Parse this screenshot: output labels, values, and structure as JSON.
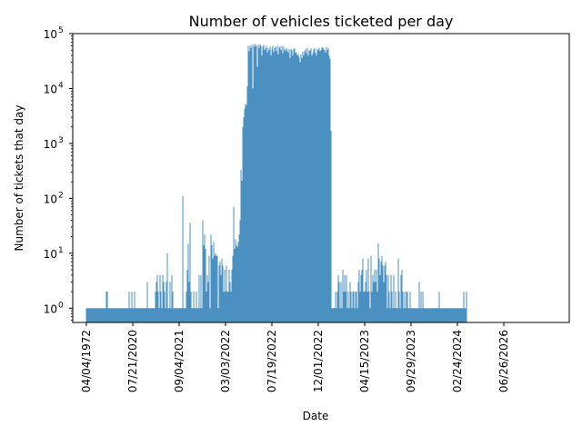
{
  "chart_data": {
    "type": "bar",
    "title": "Number of vehicles ticketed per day",
    "xlabel": "Date",
    "ylabel": "Number of tickets that day",
    "yscale": "log",
    "ylim": [
      0.55,
      100000
    ],
    "y_ticks": [
      {
        "value": 1,
        "base": "10",
        "exp": "0"
      },
      {
        "value": 10,
        "base": "10",
        "exp": "1"
      },
      {
        "value": 100,
        "base": "10",
        "exp": "2"
      },
      {
        "value": 1000,
        "base": "10",
        "exp": "3"
      },
      {
        "value": 10000,
        "base": "10",
        "exp": "4"
      },
      {
        "value": 100000,
        "base": "10",
        "exp": "5"
      }
    ],
    "x_ticks": [
      "04/04/1972",
      "07/21/2020",
      "09/04/2021",
      "03/03/2022",
      "07/19/2022",
      "12/01/2022",
      "04/15/2023",
      "09/29/2023",
      "02/24/2024",
      "06/26/2026"
    ],
    "x_tick_positions": [
      0,
      51,
      102,
      153,
      204,
      255,
      306,
      357,
      408,
      459
    ],
    "bar_color": "#1f77b4",
    "grid": false,
    "legend": "none",
    "segments": [
      {
        "start": 0,
        "values": [
          1,
          1,
          1,
          1,
          1,
          1,
          1,
          1,
          1,
          1,
          1,
          1,
          1,
          1,
          1,
          1,
          1,
          1,
          1,
          1,
          1,
          1,
          2,
          2,
          1,
          1,
          1,
          1,
          1,
          1
        ]
      },
      {
        "start": 30,
        "values": [
          1,
          1,
          1,
          1,
          1,
          1,
          1,
          1,
          1,
          1,
          1,
          1,
          1,
          1,
          1,
          1,
          1,
          2,
          1,
          1,
          2,
          1,
          1,
          2,
          1,
          1,
          1,
          1,
          1,
          1
        ]
      },
      {
        "start": 60,
        "values": [
          1,
          1,
          1,
          1,
          1,
          1,
          1,
          3,
          1,
          1,
          1,
          1,
          1,
          1,
          1,
          1,
          2,
          3,
          4,
          2,
          1,
          4,
          2,
          1,
          4,
          3,
          2,
          1,
          3,
          10
        ]
      },
      {
        "start": 90,
        "values": [
          1,
          1,
          3,
          1,
          4,
          2,
          1,
          1,
          1,
          1,
          1,
          1,
          1,
          1,
          1,
          1,
          110,
          1,
          1,
          1,
          2,
          5,
          15,
          3,
          36,
          2,
          1,
          1,
          2,
          1
        ]
      },
      {
        "start": 120,
        "values": [
          1,
          2,
          1,
          1,
          4,
          1,
          4,
          1,
          40,
          14,
          22,
          12,
          2,
          4,
          3,
          9,
          1,
          22,
          14,
          8,
          16,
          9,
          10,
          9,
          9,
          1,
          6,
          7,
          4,
          8
        ]
      },
      {
        "start": 150,
        "values": [
          6,
          2,
          5,
          2,
          6,
          2,
          2,
          5,
          3,
          2,
          5,
          9,
          70,
          12,
          18,
          14,
          13,
          16,
          22,
          40,
          330,
          210,
          2000,
          3000,
          4300,
          5300,
          5000,
          11000,
          60000,
          48000
        ]
      },
      {
        "start": 180,
        "values": [
          60000,
          55000,
          62000,
          10000,
          64000,
          58000,
          65000,
          60000,
          25000,
          63000,
          55000,
          64000,
          60000,
          40000,
          58000,
          62000,
          50000,
          54000,
          60000,
          45000,
          55000,
          50000,
          58000,
          40000,
          52000,
          60000,
          46000,
          55000,
          58000,
          48000
        ]
      },
      {
        "start": 210,
        "values": [
          60000,
          42000,
          56000,
          58000,
          50000,
          60000,
          44000,
          58000,
          52000,
          48000,
          55000,
          50000,
          45000,
          52000,
          36000,
          52000,
          50000,
          40000,
          52000,
          54000,
          45000,
          45000,
          40000,
          42000,
          38000,
          30000,
          42000,
          36000,
          47000,
          40000
        ]
      },
      {
        "start": 240,
        "values": [
          48000,
          52000,
          44000,
          55000,
          40000,
          50000,
          48000,
          54000,
          40000,
          44000,
          52000,
          55000,
          45000,
          40000,
          53000,
          50000,
          55000,
          48000,
          50000,
          56000,
          56000,
          52000,
          50000,
          45000,
          57000,
          50000,
          55000,
          40000,
          35000,
          1700
        ]
      },
      {
        "start": 270,
        "values": [
          1,
          1,
          1,
          1,
          2,
          1,
          2,
          4,
          3,
          1,
          3,
          1,
          5,
          2,
          4,
          2,
          4,
          1,
          2,
          1,
          3,
          2,
          1,
          2,
          2,
          1,
          2,
          2,
          1,
          3
        ]
      },
      {
        "start": 300,
        "values": [
          5,
          2,
          4,
          5,
          8,
          2,
          2,
          3,
          5,
          2,
          8,
          2,
          1,
          9,
          2,
          4,
          3,
          5,
          3,
          5,
          2,
          15,
          8,
          4,
          7,
          9,
          6,
          3,
          6,
          7
        ]
      },
      {
        "start": 330,
        "values": [
          4,
          1,
          4,
          2,
          1,
          4,
          2,
          1,
          4,
          1,
          2,
          1,
          1,
          8,
          2,
          1,
          4,
          5,
          2,
          1,
          2,
          1,
          2,
          2,
          1,
          1,
          2,
          1,
          1,
          1
        ]
      },
      {
        "start": 360,
        "values": [
          1,
          1,
          1,
          1,
          1,
          1,
          3,
          1,
          2,
          1,
          2,
          1,
          1,
          1,
          1,
          1,
          1,
          1,
          1,
          1,
          1,
          1,
          1,
          1,
          1,
          1,
          1,
          1,
          2,
          1
        ]
      },
      {
        "start": 390,
        "values": [
          1,
          1,
          1,
          1,
          1,
          1,
          1,
          1,
          1,
          1,
          1,
          1,
          1,
          1,
          1,
          1,
          1,
          1,
          1,
          1,
          1,
          1,
          1,
          1,
          1,
          2,
          1,
          1,
          2
        ]
      }
    ]
  }
}
